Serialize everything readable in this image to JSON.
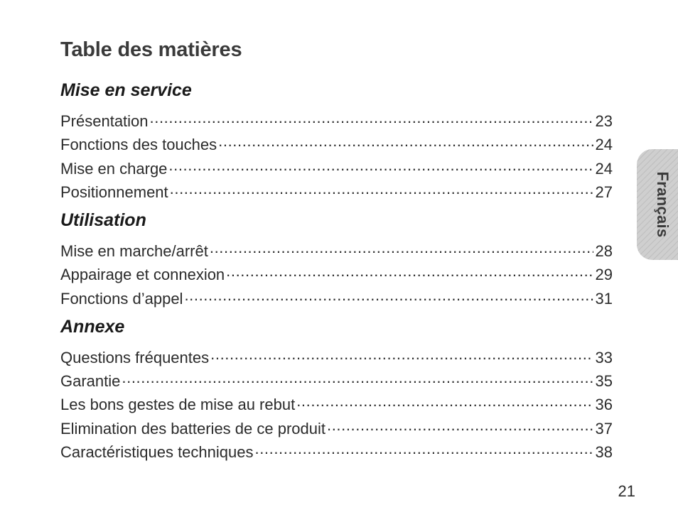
{
  "page": {
    "title": "Table des matières",
    "language_tab": "Français",
    "page_number": "21"
  },
  "sections": [
    {
      "heading": "Mise en service",
      "entries": [
        {
          "label": "Présentation",
          "page": "23"
        },
        {
          "label": "Fonctions des touches",
          "page": "24"
        },
        {
          "label": "Mise en charge",
          "page": "24"
        },
        {
          "label": "Positionnement",
          "page": "27"
        }
      ]
    },
    {
      "heading": "Utilisation",
      "entries": [
        {
          "label": "Mise en marche/arrêt",
          "page": "28"
        },
        {
          "label": "Appairage et connexion",
          "page": "29"
        },
        {
          "label": "Fonctions d’appel",
          "page": "31"
        }
      ]
    },
    {
      "heading": "Annexe",
      "entries": [
        {
          "label": "Questions fréquentes",
          "page": "33"
        },
        {
          "label": "Garantie",
          "page": "35"
        },
        {
          "label": "Les bons gestes de mise au rebut",
          "page": "36"
        },
        {
          "label": "Elimination des batteries de ce produit",
          "page": "37"
        },
        {
          "label": "Caractéristiques techniques",
          "page": "38"
        }
      ]
    }
  ],
  "colors": {
    "text": "#2b2b2b",
    "tab_background": "#cfcfcf"
  }
}
